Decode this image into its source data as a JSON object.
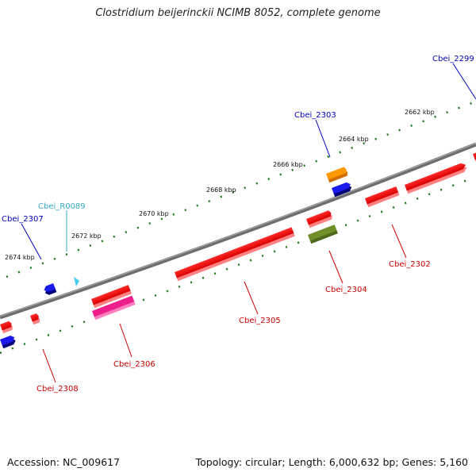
{
  "title": "Clostridium beijerinckii NCIMB 8052, complete genome",
  "footer": {
    "accession": "Accession: NC_009617",
    "summary": "Topology: circular; Length: 6,000,632 bp; Genes: 5,160"
  },
  "colors": {
    "backbone": "#7a7a7a",
    "tick": "#1a7a1a",
    "label_red": "#cc0000",
    "label_blue": "#0000bb",
    "label_cyan": "#33aacc"
  },
  "kbp_labels": [
    "2662 kbp",
    "2664 kbp",
    "2666 kbp",
    "2668 kbp",
    "2670 kbp",
    "2672 kbp",
    "2674 kbp"
  ],
  "genes": [
    {
      "name": "Cbei_2299",
      "color": "#0000bb"
    },
    {
      "name": "Cbei_2302",
      "color": "#cc0000"
    },
    {
      "name": "Cbei_2303",
      "color": "#0000bb"
    },
    {
      "name": "Cbei_2304",
      "color": "#cc0000"
    },
    {
      "name": "Cbei_2305",
      "color": "#cc0000"
    },
    {
      "name": "Cbei_2306",
      "color": "#cc0000"
    },
    {
      "name": "Cbei_R0089",
      "color": "#33aacc"
    },
    {
      "name": "Cbei_2307",
      "color": "#0000bb"
    },
    {
      "name": "Cbei_2308",
      "color": "#cc0000"
    }
  ]
}
